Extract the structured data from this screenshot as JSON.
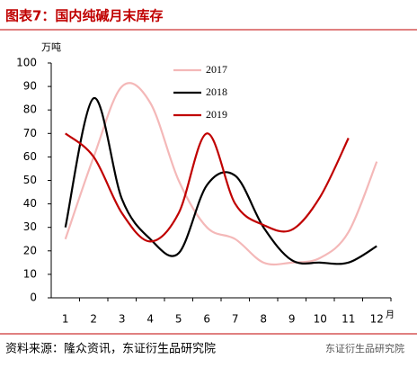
{
  "chart_data": {
    "type": "line",
    "title": "图表7：国内纯碱月末库存",
    "y_label": "万吨",
    "x_label": "月",
    "categories": [
      "1",
      "2",
      "3",
      "4",
      "5",
      "6",
      "7",
      "8",
      "9",
      "10",
      "11",
      "12"
    ],
    "series": [
      {
        "name": "2017",
        "color": "#f4b8b8",
        "values": [
          25,
          60,
          90,
          83,
          50,
          30,
          25,
          15,
          15,
          17,
          28,
          58
        ]
      },
      {
        "name": "2018",
        "color": "#000000",
        "values": [
          30,
          85,
          42,
          25,
          19,
          48,
          52,
          30,
          16,
          15,
          15,
          22
        ]
      },
      {
        "name": "2019",
        "color": "#c00000",
        "values": [
          70,
          60,
          36,
          24,
          36,
          70,
          40,
          31,
          29,
          43,
          68,
          null
        ]
      }
    ],
    "ylim": [
      0,
      100
    ],
    "yticks": [
      0,
      10,
      20,
      30,
      40,
      50,
      60,
      70,
      80,
      90,
      100
    ],
    "source": "资料来源：隆众资讯，东证衍生品研究院",
    "watermark": "东证衍生品研究院"
  }
}
